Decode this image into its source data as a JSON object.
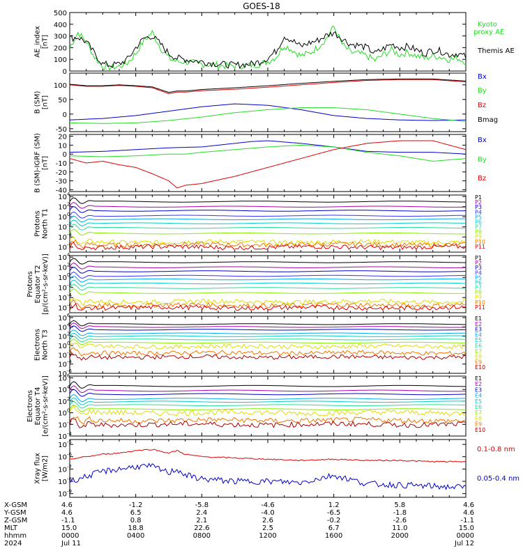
{
  "title": "GOES-18",
  "colors": {
    "black": "#000000",
    "green": "#22dd22",
    "blue": "#0000cc",
    "red": "#dd0000",
    "navy": "#000088",
    "cyan": "#00cccc",
    "aqua": "#33dddd",
    "mint": "#22dd99",
    "lime": "#88ee00",
    "yellow": "#dddd00",
    "orange": "#ee7700",
    "darkred": "#aa0000"
  },
  "chart_data": [
    {
      "type": "line",
      "id": "ae",
      "ylabel_lines": [
        "AE_index",
        "[nT]"
      ],
      "ylim": [
        0,
        500
      ],
      "ticks": [
        {
          "v": 0,
          "t": "0"
        },
        {
          "v": 100,
          "t": "100"
        },
        {
          "v": 200,
          "t": "200"
        },
        {
          "v": 300,
          "t": "300"
        },
        {
          "v": 400,
          "t": "400"
        },
        {
          "v": 500,
          "t": "500"
        }
      ],
      "legend": [
        "Kyoto proxy AE",
        "Themis AE"
      ],
      "series": [
        {
          "name": "Kyoto proxy AE",
          "color": "#22dd22",
          "x": [
            0,
            0.5,
            1,
            1.5,
            2,
            2.5,
            3,
            3.5,
            4,
            4.5,
            5,
            5.5,
            6,
            6.5,
            7,
            7.5,
            8,
            8.5,
            9,
            9.5,
            10,
            10.5,
            11,
            11.5,
            12,
            12.5,
            13,
            13.5,
            14,
            14.5,
            15,
            15.5,
            16,
            16.5,
            17,
            17.5,
            18,
            18.5,
            19,
            19.5,
            20,
            20.5,
            21,
            21.5,
            22,
            22.5,
            23,
            23.5,
            24
          ],
          "y": [
            200,
            330,
            250,
            120,
            40,
            30,
            40,
            70,
            150,
            260,
            330,
            200,
            110,
            80,
            80,
            70,
            60,
            55,
            50,
            45,
            45,
            45,
            50,
            60,
            80,
            120,
            220,
            180,
            130,
            150,
            200,
            270,
            380,
            230,
            160,
            150,
            130,
            90,
            140,
            180,
            140,
            160,
            130,
            110,
            130,
            120,
            100,
            110,
            80
          ]
        },
        {
          "name": "Themis AE",
          "color": "#000000",
          "x": [
            0,
            0.5,
            1,
            1.5,
            2,
            2.5,
            3,
            3.5,
            4,
            4.5,
            5,
            5.5,
            6,
            6.5,
            7,
            7.5,
            8,
            8.5,
            9,
            9.5,
            10,
            10.5,
            11,
            11.5,
            12,
            12.5,
            13,
            13.5,
            14,
            14.5,
            15,
            15.5,
            16,
            16.5,
            17,
            17.5,
            18,
            18.5,
            19,
            19.5,
            20,
            20.5,
            21,
            21.5,
            22,
            22.5,
            23,
            23.5,
            24
          ],
          "y": [
            280,
            290,
            250,
            150,
            60,
            50,
            60,
            100,
            200,
            280,
            300,
            230,
            150,
            110,
            100,
            90,
            80,
            70,
            60,
            55,
            50,
            55,
            60,
            80,
            110,
            170,
            300,
            260,
            210,
            240,
            260,
            300,
            330,
            280,
            230,
            220,
            200,
            150,
            190,
            230,
            200,
            210,
            180,
            150,
            180,
            170,
            140,
            150,
            120
          ]
        }
      ]
    },
    {
      "type": "line",
      "id": "bsm",
      "ylabel_lines": [
        "B (SM)",
        "[nT]"
      ],
      "ylim": [
        -60,
        140
      ],
      "ticks": [
        {
          "v": -50,
          "t": "-50"
        },
        {
          "v": 0,
          "t": "0"
        },
        {
          "v": 50,
          "t": "50"
        },
        {
          "v": 100,
          "t": "100"
        }
      ],
      "legend": [
        "Bx",
        "By",
        "Bz",
        "Bmag"
      ],
      "series": [
        {
          "name": "Bx",
          "color": "#0000cc",
          "x": [
            0,
            2,
            4,
            6,
            8,
            10,
            12,
            14,
            16,
            18,
            20,
            22,
            24
          ],
          "y": [
            -20,
            -15,
            -5,
            10,
            25,
            35,
            30,
            15,
            -5,
            -15,
            -20,
            -22,
            -20
          ]
        },
        {
          "name": "By",
          "color": "#22dd22",
          "x": [
            0,
            2,
            4,
            6,
            8,
            10,
            12,
            14,
            16,
            18,
            20,
            22,
            24
          ],
          "y": [
            -30,
            -32,
            -30,
            -22,
            -10,
            5,
            15,
            22,
            22,
            15,
            0,
            -15,
            -25
          ]
        },
        {
          "name": "Bz",
          "color": "#dd0000",
          "x": [
            0,
            1,
            2,
            3,
            4,
            5,
            6,
            6.5,
            7,
            8,
            10,
            12,
            14,
            16,
            18,
            20,
            22,
            24
          ],
          "y": [
            100,
            95,
            95,
            98,
            95,
            90,
            70,
            75,
            75,
            80,
            85,
            92,
            100,
            108,
            115,
            118,
            118,
            110
          ]
        },
        {
          "name": "Bmag",
          "color": "#000000",
          "x": [
            0,
            1,
            2,
            3,
            4,
            5,
            6,
            6.5,
            7,
            8,
            10,
            12,
            14,
            16,
            18,
            20,
            22,
            24
          ],
          "y": [
            102,
            97,
            97,
            100,
            97,
            93,
            74,
            79,
            79,
            84,
            90,
            97,
            105,
            112,
            118,
            120,
            120,
            113
          ]
        }
      ]
    },
    {
      "type": "line",
      "id": "bdiff",
      "ylabel_lines": [
        "B (SM)-IGRF (SM)",
        "[nT]"
      ],
      "ylim": [
        -42,
        22
      ],
      "ticks": [
        {
          "v": -40,
          "t": "-40"
        },
        {
          "v": -30,
          "t": "-30"
        },
        {
          "v": -20,
          "t": "-20"
        },
        {
          "v": -10,
          "t": "-10"
        },
        {
          "v": 0,
          "t": "0"
        },
        {
          "v": 10,
          "t": "10"
        },
        {
          "v": 20,
          "t": "20"
        }
      ],
      "legend": [
        "Bx",
        "By",
        "Bz"
      ],
      "series": [
        {
          "name": "Bx",
          "color": "#0000cc",
          "x": [
            0,
            2,
            4,
            6,
            8,
            10,
            11,
            12,
            14,
            16,
            18,
            20,
            22,
            24
          ],
          "y": [
            2,
            3,
            5,
            7,
            8,
            12,
            14,
            15,
            12,
            8,
            3,
            2,
            2,
            0
          ]
        },
        {
          "name": "By",
          "color": "#22dd22",
          "x": [
            0,
            2,
            4,
            6,
            7,
            8,
            10,
            12,
            14,
            16,
            18,
            20,
            22,
            24
          ],
          "y": [
            -2,
            -3,
            -2,
            0,
            0,
            2,
            5,
            8,
            10,
            8,
            2,
            -2,
            -8,
            -5
          ]
        },
        {
          "name": "Bz",
          "color": "#dd0000",
          "x": [
            0,
            1,
            2,
            3,
            4,
            5,
            6,
            6.5,
            7,
            8,
            10,
            12,
            14,
            16,
            18,
            20,
            22,
            24
          ],
          "y": [
            -5,
            -10,
            -8,
            -12,
            -15,
            -22,
            -30,
            -38,
            -35,
            -33,
            -25,
            -15,
            -5,
            5,
            12,
            15,
            15,
            5
          ]
        }
      ]
    },
    {
      "type": "line",
      "id": "pt1",
      "log": true,
      "ylabel_lines": [
        "Protons",
        "North T1"
      ],
      "ylim_exp": [
        -7,
        4.3
      ],
      "ticks": [
        {
          "e": 4,
          "t": "10"
        },
        {
          "e": 2,
          "t": "10"
        },
        {
          "e": 0,
          "t": "10"
        },
        {
          "e": -2,
          "t": "10"
        },
        {
          "e": -4,
          "t": "10"
        },
        {
          "e": -6,
          "t": "10"
        }
      ],
      "legend": [
        "P1",
        "P2",
        "P3",
        "P4",
        "P5",
        "P6",
        "P7",
        "P8",
        "P9",
        "P10",
        "P11"
      ],
      "levels": [
        3.0,
        2.0,
        1.2,
        0.2,
        -0.5,
        -1.3,
        -2.2,
        -3.3,
        -5.0,
        -5.5,
        -6.0
      ],
      "series_colors": [
        "#000000",
        "#aa00aa",
        "#0000cc",
        "#3333ff",
        "#00aaee",
        "#00cccc",
        "#22dd99",
        "#88ee00",
        "#dddd00",
        "#ee7700",
        "#dd0000"
      ]
    },
    {
      "type": "line",
      "id": "pt2",
      "log": true,
      "ylabel_lines": [
        "Protons",
        "Equator T2",
        "[p/(cm²-s-sr-keV)]"
      ],
      "ylim_exp": [
        -7,
        4.3
      ],
      "ticks": [
        {
          "e": 4,
          "t": "10"
        },
        {
          "e": 2,
          "t": "10"
        },
        {
          "e": 0,
          "t": "10"
        },
        {
          "e": -2,
          "t": "10"
        },
        {
          "e": -4,
          "t": "10"
        },
        {
          "e": -6,
          "t": "10"
        }
      ],
      "legend": [
        "P1",
        "P2",
        "P3",
        "P4",
        "P5",
        "P6",
        "P7",
        "P8",
        "P9",
        "P10",
        "P11"
      ],
      "levels": [
        3.0,
        2.0,
        1.2,
        0.3,
        -0.4,
        -1.2,
        -2.1,
        -3.1,
        -4.8,
        -5.5,
        -6.0
      ],
      "series_colors": [
        "#000000",
        "#aa00aa",
        "#0000cc",
        "#3333ff",
        "#00aaee",
        "#00cccc",
        "#22dd99",
        "#88ee00",
        "#dddd00",
        "#ee7700",
        "#dd0000"
      ]
    },
    {
      "type": "line",
      "id": "et3",
      "log": true,
      "ylabel_lines": [
        "Electrons",
        "North T3"
      ],
      "ylim_exp": [
        -6,
        6.3
      ],
      "ticks": [
        {
          "e": 6,
          "t": "10"
        },
        {
          "e": 4,
          "t": "10"
        },
        {
          "e": 2,
          "t": "10"
        },
        {
          "e": 0,
          "t": "10"
        },
        {
          "e": -2,
          "t": "10"
        },
        {
          "e": -4,
          "t": "10"
        },
        {
          "e": -6,
          "t": "10"
        }
      ],
      "legend": [
        "E1",
        "E2",
        "E3",
        "E4",
        "E5",
        "E6",
        "E7",
        "E8",
        "E9",
        "E10"
      ],
      "levels": [
        4.6,
        4.0,
        3.4,
        2.6,
        2.0,
        1.3,
        0.6,
        -0.2,
        -1.6,
        -2.5
      ],
      "series_colors": [
        "#000000",
        "#aa00aa",
        "#0000cc",
        "#00aaee",
        "#00cccc",
        "#22dd99",
        "#88ee00",
        "#dddd00",
        "#ee7700",
        "#aa0000"
      ]
    },
    {
      "type": "line",
      "id": "et4",
      "log": true,
      "ylabel_lines": [
        "Electrons",
        "Equator T4",
        "[e/(cm²-s-sr-keV)]"
      ],
      "ylim_exp": [
        -4,
        6.3
      ],
      "ticks": [
        {
          "e": 6,
          "t": "10"
        },
        {
          "e": 4,
          "t": "10"
        },
        {
          "e": 2,
          "t": "10"
        },
        {
          "e": 0,
          "t": "10"
        },
        {
          "e": -2,
          "t": "10"
        },
        {
          "e": -4,
          "t": "10"
        }
      ],
      "legend": [
        "E1",
        "E2",
        "E3",
        "E4",
        "E5",
        "E6",
        "E7",
        "E8",
        "E9",
        "E10"
      ],
      "levels": [
        4.6,
        3.8,
        3.2,
        2.4,
        1.9,
        1.3,
        0.6,
        0.0,
        -1.3,
        -2.0
      ],
      "series_colors": [
        "#000000",
        "#aa00aa",
        "#0000cc",
        "#00aaee",
        "#00cccc",
        "#22dd99",
        "#88ee00",
        "#dddd00",
        "#ee7700",
        "#aa0000"
      ]
    },
    {
      "type": "line",
      "id": "xray",
      "log": true,
      "ylabel_lines": [
        "Xray flux",
        "[W/m2]"
      ],
      "ylim_exp": [
        -9.3,
        -4.6
      ],
      "ticks": [
        {
          "e": -5,
          "t": "10"
        },
        {
          "e": -6,
          "t": "10"
        },
        {
          "e": -7,
          "t": "10"
        },
        {
          "e": -8,
          "t": "10"
        },
        {
          "e": -9,
          "t": "10"
        }
      ],
      "legend": [
        "0.1-0.8 nm",
        "0.05-0.4 nm"
      ],
      "series": [
        {
          "name": "0.1-0.8 nm",
          "color": "#dd0000",
          "x": [
            0,
            1,
            2,
            3,
            4,
            5,
            6,
            6.5,
            7,
            8,
            10,
            12,
            14,
            16,
            18,
            20,
            22,
            24
          ],
          "y_exp": [
            -6.2,
            -6.0,
            -5.8,
            -5.7,
            -5.5,
            -5.4,
            -5.7,
            -5.5,
            -5.8,
            -6.0,
            -6.1,
            -6.2,
            -6.3,
            -6.2,
            -6.3,
            -6.3,
            -6.4,
            -6.4
          ]
        },
        {
          "name": "0.05-0.4 nm",
          "color": "#0000cc",
          "x": [
            0,
            1,
            2,
            3,
            4,
            5,
            6,
            6.5,
            7,
            8,
            10,
            12,
            14,
            16,
            18,
            20,
            22,
            24
          ],
          "y_exp": [
            -8.0,
            -7.6,
            -7.2,
            -7.0,
            -6.8,
            -6.8,
            -7.3,
            -7.0,
            -7.5,
            -7.8,
            -8.0,
            -8.0,
            -8.1,
            -7.5,
            -8.2,
            -8.3,
            -8.4,
            -8.5
          ]
        }
      ]
    }
  ],
  "orbit_table": {
    "row_labels": [
      "X-GSM",
      "Y-GSM",
      "Z-GSM",
      "MLT",
      "hhmm",
      "2024"
    ],
    "columns": [
      {
        "hour": 0,
        "vals": [
          "4.6",
          "4.6",
          "-1.1",
          "15.0",
          "0000",
          "Jul 11"
        ]
      },
      {
        "hour": 4,
        "vals": [
          "-1.2",
          "6.5",
          "0.8",
          "18.8",
          "0400",
          ""
        ]
      },
      {
        "hour": 8,
        "vals": [
          "-5.8",
          "2.4",
          "2.1",
          "22.6",
          "0800",
          ""
        ]
      },
      {
        "hour": 12,
        "vals": [
          "-4.6",
          "-4.0",
          "2.6",
          "2.5",
          "1200",
          ""
        ]
      },
      {
        "hour": 16,
        "vals": [
          "1.2",
          "-6.5",
          "-0.2",
          "6.7",
          "1600",
          ""
        ]
      },
      {
        "hour": 20,
        "vals": [
          "5.8",
          "-1.8",
          "-2.6",
          "11.0",
          "2000",
          ""
        ]
      },
      {
        "hour": 24,
        "vals": [
          "4.6",
          "4.6",
          "-1.1",
          "15.0",
          "0000",
          "Jul 12"
        ]
      }
    ]
  }
}
